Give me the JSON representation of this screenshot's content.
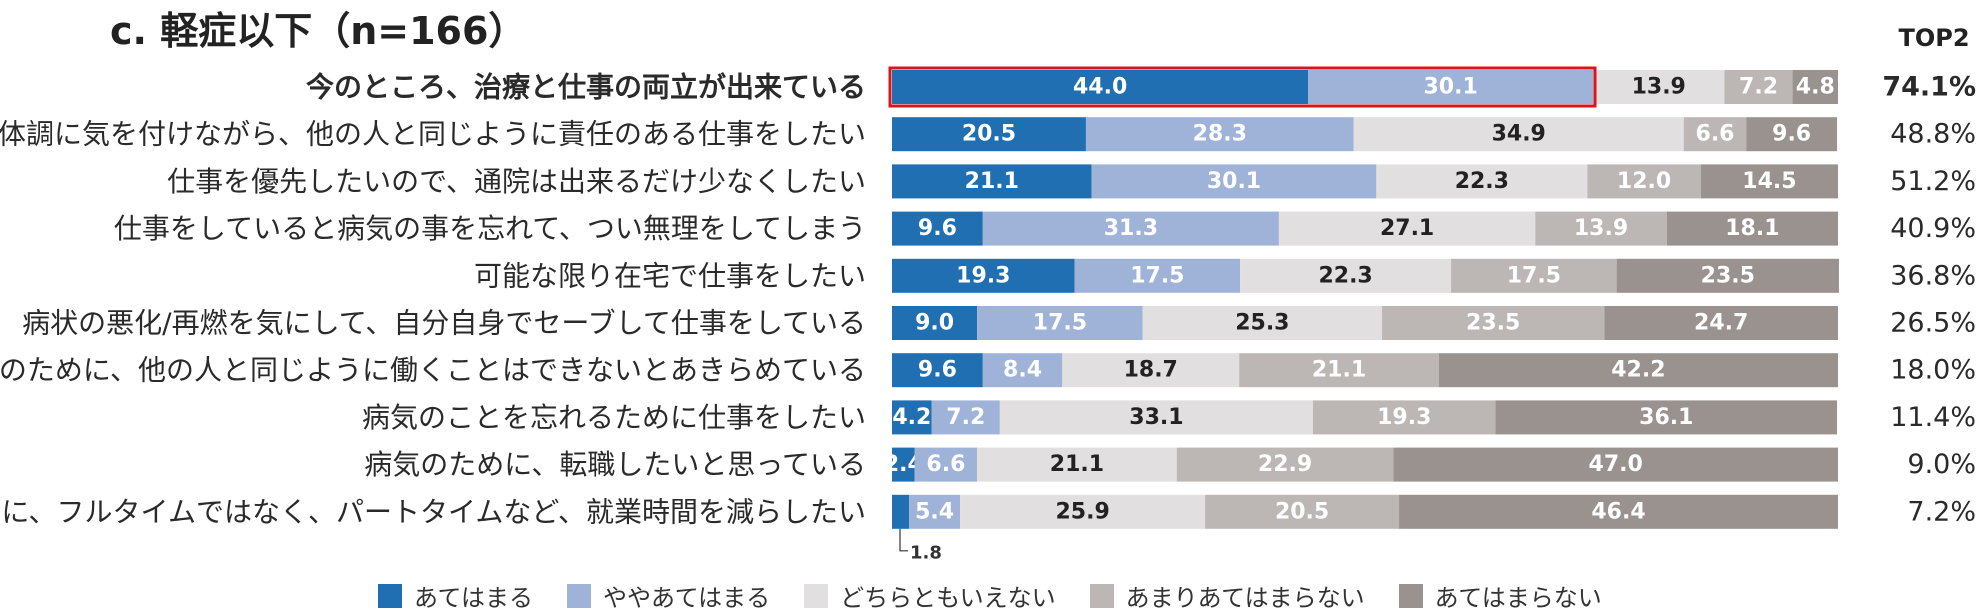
{
  "chart_data": {
    "type": "bar",
    "orientation": "horizontal-stacked-100",
    "title": "c. 軽症以下（n=166）",
    "top2_header": "TOP2",
    "categories": [
      "今のところ、治療と仕事の両立が出来ている",
      "体調に気を付けながら、他の人と同じように責任のある仕事をしたい",
      "仕事を優先したいので、通院は出来るだけ少なくしたい",
      "仕事をしていると病気の事を忘れて、つい無理をしてしまう",
      "可能な限り在宅で仕事をしたい",
      "病状の悪化/再燃を気にして、自分自身でセーブして仕事をしている",
      "病気のために、他の人と同じように働くことはできないとあきらめている",
      "病気のことを忘れるために仕事をしたい",
      "病気のために、転職したいと思っている",
      "病気のために、フルタイムではなく、パートタイムなど、就業時間を減らしたい"
    ],
    "highlight_index": 0,
    "series": [
      {
        "name": "あてはまる",
        "color": "#1f6fb2",
        "label_color": "#ffffff",
        "values": [
          44.0,
          20.5,
          21.1,
          9.6,
          19.3,
          9.0,
          9.6,
          4.2,
          2.4,
          1.8
        ]
      },
      {
        "name": "ややあてはまる",
        "color": "#9fb3d9",
        "label_color": "#ffffff",
        "values": [
          30.1,
          28.3,
          30.1,
          31.3,
          17.5,
          17.5,
          8.4,
          7.2,
          6.6,
          5.4
        ]
      },
      {
        "name": "どちらともいえない",
        "color": "#e1dfdf",
        "label_color": "#222222",
        "values": [
          13.9,
          34.9,
          22.3,
          27.1,
          22.3,
          25.3,
          18.7,
          33.1,
          21.1,
          25.9
        ]
      },
      {
        "name": "あまりあてはまらない",
        "color": "#bcb7b5",
        "label_color": "#ffffff",
        "values": [
          7.2,
          6.6,
          12.0,
          13.9,
          17.5,
          23.5,
          21.1,
          19.3,
          22.9,
          20.5
        ]
      },
      {
        "name": "あてはまらない",
        "color": "#99928f",
        "label_color": "#ffffff",
        "values": [
          4.8,
          9.6,
          14.5,
          18.1,
          23.5,
          24.7,
          42.2,
          36.1,
          47.0,
          46.4
        ]
      }
    ],
    "top2": [
      "74.1%",
      "48.8%",
      "51.2%",
      "40.9%",
      "36.8%",
      "26.5%",
      "18.0%",
      "11.4%",
      "9.0%",
      "7.2%"
    ],
    "callout": "1.8",
    "xlim": [
      0,
      100
    ],
    "colors": {
      "highlight_label": "#2a9bd6",
      "highlight_border": "#d9141e"
    }
  }
}
